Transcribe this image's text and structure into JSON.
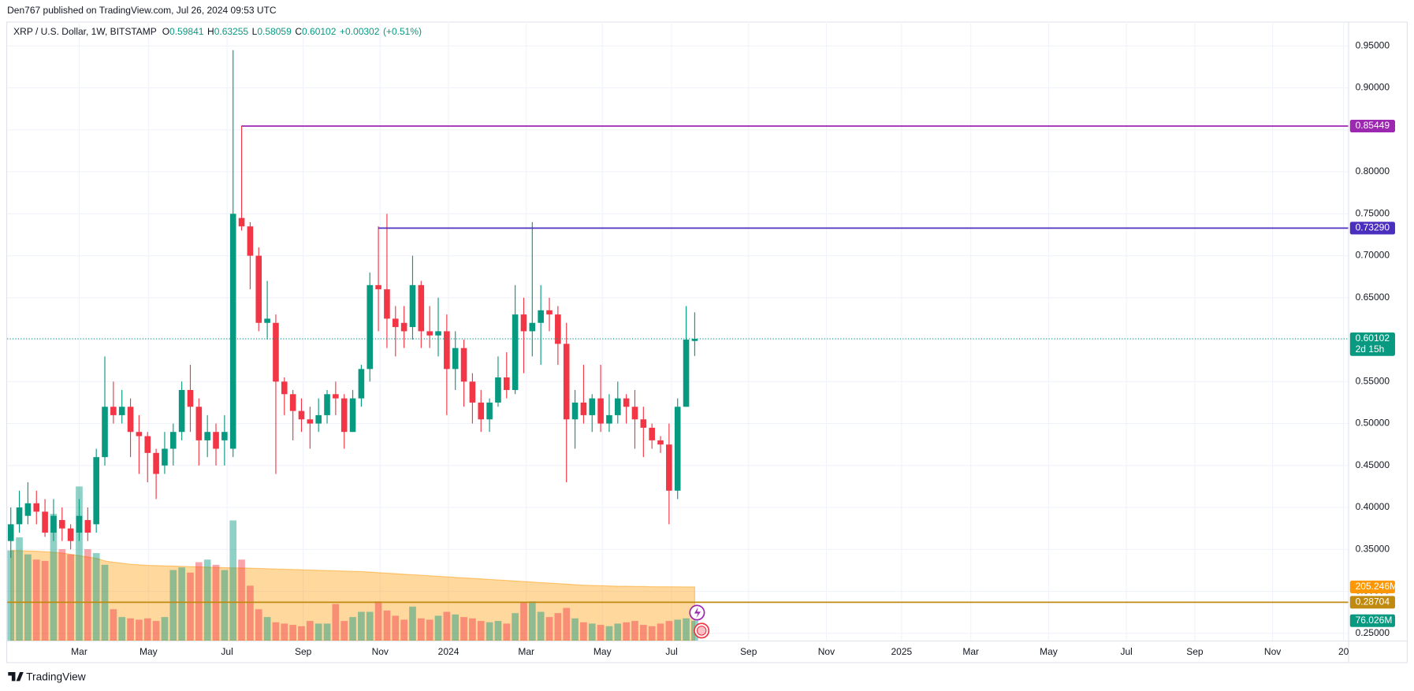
{
  "header": {
    "publisher": "Den767 published on TradingView.com, Jul 26, 2024 09:53 UTC",
    "footer": "TradingView"
  },
  "chart_data": {
    "type": "candlestick",
    "title": "XRP / U.S. Dollar, 1W, BITSTAMP",
    "ohlc_keys": [
      "O",
      "H",
      "L",
      "C"
    ],
    "change": {
      "value": 0.00302,
      "label": "+0.00302"
    },
    "change_pct": {
      "value": 0.51,
      "label": "(+0.51%)"
    },
    "countdown": "2d 15h",
    "up_color": "#089981",
    "down_color": "#f23645",
    "candles": {
      "open": [
        0.36,
        0.38,
        0.39,
        0.405,
        0.395,
        0.37,
        0.385,
        0.375,
        0.37,
        0.385,
        0.38,
        0.46,
        0.52,
        0.51,
        0.52,
        0.49,
        0.485,
        0.465,
        0.45,
        0.47,
        0.49,
        0.54,
        0.52,
        0.48,
        0.49,
        0.48,
        0.47,
        0.745,
        0.735,
        0.7,
        0.62,
        0.62,
        0.55,
        0.535,
        0.515,
        0.505,
        0.5,
        0.51,
        0.535,
        0.53,
        0.49,
        0.53,
        0.565,
        0.665,
        0.66,
        0.625,
        0.62,
        0.615,
        0.665,
        0.61,
        0.605,
        0.61,
        0.565,
        0.59,
        0.55,
        0.525,
        0.505,
        0.525,
        0.555,
        0.54,
        0.63,
        0.61,
        0.62,
        0.635,
        0.63,
        0.595,
        0.505,
        0.525,
        0.51,
        0.53,
        0.5,
        0.51,
        0.53,
        0.52,
        0.505,
        0.495,
        0.48,
        0.475,
        0.42,
        0.52,
        0.59841
      ],
      "high": [
        0.4,
        0.42,
        0.43,
        0.42,
        0.41,
        0.41,
        0.4,
        0.38,
        0.41,
        0.4,
        0.47,
        0.58,
        0.55,
        0.54,
        0.53,
        0.51,
        0.49,
        0.47,
        0.49,
        0.5,
        0.55,
        0.57,
        0.53,
        0.51,
        0.5,
        0.51,
        0.945,
        0.855,
        0.74,
        0.71,
        0.67,
        0.63,
        0.555,
        0.54,
        0.53,
        0.52,
        0.53,
        0.54,
        0.55,
        0.535,
        0.54,
        0.57,
        0.68,
        0.735,
        0.75,
        0.64,
        0.64,
        0.7,
        0.67,
        0.64,
        0.65,
        0.63,
        0.61,
        0.6,
        0.56,
        0.54,
        0.53,
        0.58,
        0.585,
        0.665,
        0.65,
        0.74,
        0.665,
        0.65,
        0.64,
        0.62,
        0.54,
        0.57,
        0.535,
        0.57,
        0.535,
        0.55,
        0.535,
        0.54,
        0.52,
        0.5,
        0.485,
        0.5,
        0.53,
        0.64,
        0.63255
      ],
      "low": [
        0.34,
        0.37,
        0.38,
        0.38,
        0.365,
        0.36,
        0.36,
        0.35,
        0.36,
        0.36,
        0.37,
        0.45,
        0.5,
        0.5,
        0.46,
        0.44,
        0.43,
        0.41,
        0.44,
        0.45,
        0.48,
        0.49,
        0.45,
        0.46,
        0.45,
        0.45,
        0.46,
        0.73,
        0.66,
        0.61,
        0.6,
        0.44,
        0.51,
        0.48,
        0.49,
        0.47,
        0.49,
        0.5,
        0.51,
        0.47,
        0.49,
        0.52,
        0.55,
        0.61,
        0.59,
        0.58,
        0.59,
        0.6,
        0.59,
        0.59,
        0.58,
        0.51,
        0.54,
        0.52,
        0.5,
        0.49,
        0.49,
        0.52,
        0.53,
        0.535,
        0.56,
        0.58,
        0.57,
        0.61,
        0.57,
        0.43,
        0.47,
        0.5,
        0.49,
        0.49,
        0.49,
        0.5,
        0.5,
        0.47,
        0.46,
        0.47,
        0.465,
        0.38,
        0.41,
        0.52,
        0.58059
      ],
      "close": [
        0.38,
        0.4,
        0.405,
        0.395,
        0.37,
        0.39,
        0.375,
        0.36,
        0.39,
        0.37,
        0.46,
        0.52,
        0.51,
        0.52,
        0.49,
        0.485,
        0.465,
        0.44,
        0.47,
        0.49,
        0.54,
        0.52,
        0.48,
        0.49,
        0.47,
        0.49,
        0.75,
        0.735,
        0.7,
        0.62,
        0.625,
        0.55,
        0.535,
        0.515,
        0.505,
        0.5,
        0.51,
        0.535,
        0.53,
        0.49,
        0.53,
        0.565,
        0.665,
        0.66,
        0.625,
        0.615,
        0.61,
        0.665,
        0.61,
        0.605,
        0.61,
        0.565,
        0.59,
        0.55,
        0.525,
        0.505,
        0.525,
        0.555,
        0.54,
        0.63,
        0.61,
        0.62,
        0.635,
        0.63,
        0.595,
        0.505,
        0.525,
        0.51,
        0.53,
        0.5,
        0.51,
        0.53,
        0.52,
        0.505,
        0.495,
        0.48,
        0.475,
        0.42,
        0.52,
        0.6,
        0.60102
      ]
    },
    "volume": {
      "values": [
        345,
        395,
        330,
        310,
        305,
        485,
        350,
        330,
        590,
        350,
        335,
        290,
        120,
        90,
        85,
        80,
        85,
        75,
        90,
        270,
        280,
        260,
        300,
        310,
        290,
        270,
        460,
        310,
        210,
        120,
        90,
        70,
        65,
        60,
        55,
        75,
        65,
        65,
        140,
        75,
        90,
        110,
        110,
        150,
        115,
        95,
        80,
        130,
        85,
        80,
        95,
        110,
        100,
        90,
        85,
        75,
        70,
        75,
        65,
        105,
        145,
        150,
        110,
        90,
        105,
        125,
        85,
        70,
        65,
        60,
        55,
        65,
        70,
        75,
        60,
        55,
        65,
        75,
        80,
        85,
        76.026
      ],
      "last_label": "76.026M",
      "ma": [
        345,
        344,
        343,
        342,
        340,
        338,
        335,
        330,
        325,
        320,
        315,
        305,
        300,
        296,
        292,
        290,
        288,
        287,
        286,
        285,
        284,
        283,
        282,
        281,
        280,
        279,
        278,
        278,
        277,
        276,
        275,
        274,
        273,
        272,
        271,
        270,
        269,
        268,
        267,
        266,
        265,
        264,
        262,
        260,
        258,
        256,
        254,
        252,
        250,
        248,
        246,
        244,
        242,
        240,
        238,
        236,
        234,
        232,
        230,
        228,
        226,
        224,
        222,
        220,
        218,
        216,
        214,
        212,
        211,
        210,
        209,
        208,
        208,
        207,
        207,
        206,
        206,
        206,
        205.5,
        205.3,
        205.246
      ],
      "ma_label": "205.246M",
      "ma_color": "#ff9800",
      "vlim": [
        0,
        2370
      ]
    },
    "levels": [
      {
        "value": 0.85449,
        "color": "#9c27b0",
        "start": 27
      },
      {
        "value": 0.7329,
        "label": "0.73290",
        "color": "#4a2fbf",
        "start": 43
      },
      {
        "value": 0.28704,
        "color": "#c08a10"
      }
    ],
    "ylim": [
      0.2414,
      0.979
    ],
    "yticks": [
      {
        "value": 0.25,
        "label": "0.25000"
      },
      {
        "value": 0.3,
        "label": "0.30000"
      },
      {
        "value": 0.35,
        "label": "0.35000"
      },
      {
        "value": 0.4,
        "label": "0.40000"
      },
      {
        "value": 0.45,
        "label": "0.45000"
      },
      {
        "value": 0.5,
        "label": "0.50000"
      },
      {
        "value": 0.55,
        "label": "0.55000"
      },
      {
        "value": 0.6,
        "label": "0.60000"
      },
      {
        "value": 0.65,
        "label": "0.65000"
      },
      {
        "value": 0.7,
        "label": "0.70000"
      },
      {
        "value": 0.75,
        "label": "0.75000"
      },
      {
        "value": 0.8,
        "label": "0.80000"
      },
      {
        "value": 0.85,
        "label": "0.85000"
      },
      {
        "value": 0.9,
        "label": "0.90000"
      },
      {
        "value": 0.95,
        "label": "0.95000"
      }
    ],
    "xlim": [
      -0.42,
      156.44
    ],
    "xticks": [
      {
        "value": 8.0,
        "label": "Mar"
      },
      {
        "value": 16.1,
        "label": "May"
      },
      {
        "value": 25.3,
        "label": "Jul"
      },
      {
        "value": 34.2,
        "label": "Sep"
      },
      {
        "value": 43.2,
        "label": "Nov"
      },
      {
        "value": 51.2,
        "label": "2024"
      },
      {
        "value": 60.3,
        "label": "Mar"
      },
      {
        "value": 69.2,
        "label": "May"
      },
      {
        "value": 77.3,
        "label": "Jul"
      },
      {
        "value": 86.3,
        "label": "Sep"
      },
      {
        "value": 95.4,
        "label": "Nov"
      },
      {
        "value": 104.2,
        "label": "2025"
      },
      {
        "value": 112.3,
        "label": "Mar"
      },
      {
        "value": 121.4,
        "label": "May"
      },
      {
        "value": 130.5,
        "label": "Jul"
      },
      {
        "value": 138.5,
        "label": "Sep"
      },
      {
        "value": 147.6,
        "label": "Nov"
      },
      {
        "value": 155.9,
        "label": "20"
      }
    ],
    "grid": true
  }
}
